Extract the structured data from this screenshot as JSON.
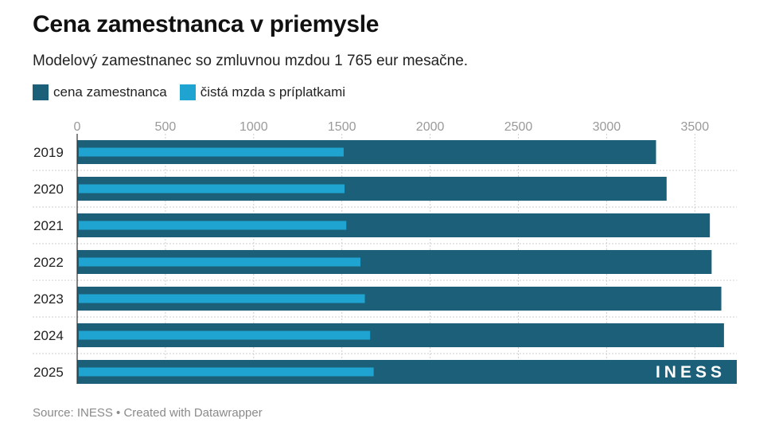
{
  "header": {
    "title": "Cena zamestnanca v priemysle",
    "subtitle": "Modelový zamestnanec so zmluvnou mzdou 1 765 eur mesačne."
  },
  "footer": {
    "source": "Source: INESS • Created with Datawrapper"
  },
  "logo": {
    "text": "INESS"
  },
  "colors": {
    "cena": "#1b6078",
    "mzda": "#1fa4d1",
    "grid": "#cfcfcf",
    "tick": "#9a9a9a"
  },
  "chart_data": {
    "type": "bar",
    "orientation": "horizontal",
    "title": "Cena zamestnanca v priemysle",
    "subtitle": "Modelový zamestnanec so zmluvnou mzdou 1 765 eur mesačne.",
    "categories": [
      "2019",
      "2020",
      "2021",
      "2022",
      "2023",
      "2024",
      "2025"
    ],
    "series": [
      {
        "name": "cena zamestnanca",
        "values": [
          3280,
          3340,
          3585,
          3595,
          3650,
          3665,
          3745
        ]
      },
      {
        "name": "čistá mzda s príplatkami",
        "values": [
          1510,
          1515,
          1525,
          1605,
          1630,
          1660,
          1680
        ]
      }
    ],
    "xticks": [
      "0",
      "500",
      "1000",
      "1500",
      "2000",
      "2500",
      "3000",
      "3500"
    ],
    "xlim": [
      0,
      3750
    ],
    "grid": true,
    "legend": "top-left"
  }
}
